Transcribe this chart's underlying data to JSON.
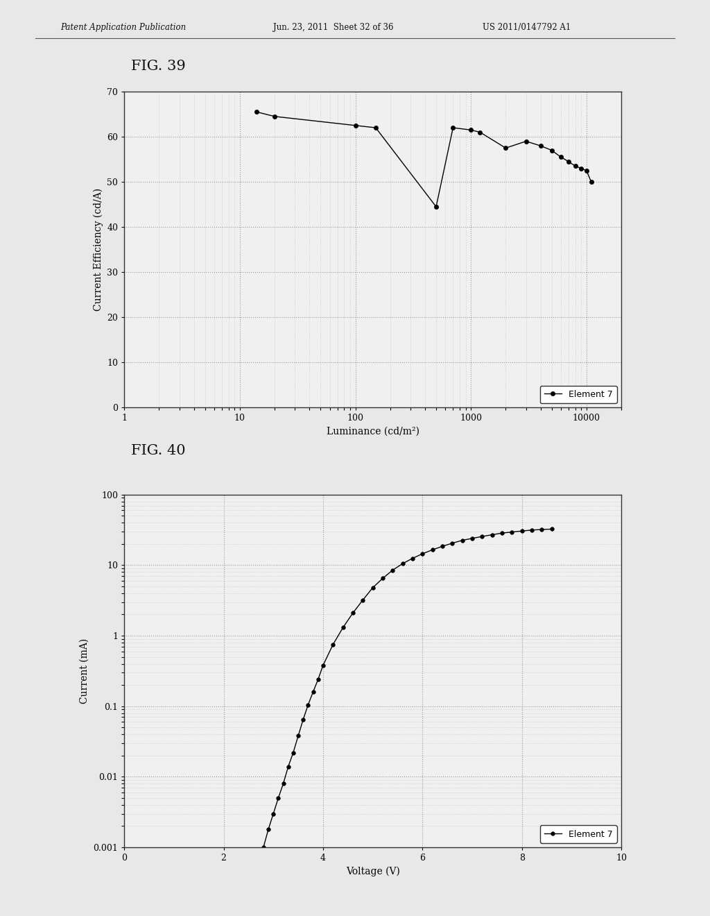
{
  "fig39_title": "FIG. 39",
  "fig40_title": "FIG. 40",
  "header_left": "Patent Application Publication",
  "header_mid": "Jun. 23, 2011  Sheet 32 of 36",
  "header_right": "US 2011/0147792 A1",
  "fig39": {
    "x": [
      14,
      20,
      100,
      150,
      500,
      700,
      1000,
      1200,
      2000,
      3000,
      4000,
      5000,
      6000,
      7000,
      8000,
      9000,
      10000,
      11000
    ],
    "y": [
      65.5,
      64.5,
      62.5,
      62.0,
      44.5,
      62.0,
      61.5,
      61.0,
      57.5,
      59.0,
      58.0,
      57.0,
      55.5,
      54.5,
      53.5,
      53.0,
      52.5,
      50.0
    ],
    "xlabel": "Luminance (cd/m²)",
    "ylabel": "Current Efficiency (cd/A)",
    "ylim": [
      0,
      70
    ],
    "yticks": [
      0,
      10,
      20,
      30,
      40,
      50,
      60,
      70
    ],
    "xticks": [
      1,
      10,
      100,
      1000,
      10000
    ],
    "xticklabels": [
      "1",
      "10",
      "100",
      "1000",
      "10000"
    ],
    "legend": "Element 7"
  },
  "fig40": {
    "x": [
      2.8,
      2.9,
      3.0,
      3.1,
      3.2,
      3.3,
      3.4,
      3.5,
      3.6,
      3.7,
      3.8,
      3.9,
      4.0,
      4.2,
      4.4,
      4.6,
      4.8,
      5.0,
      5.2,
      5.4,
      5.6,
      5.8,
      6.0,
      6.2,
      6.4,
      6.6,
      6.8,
      7.0,
      7.2,
      7.4,
      7.6,
      7.8,
      8.0,
      8.2,
      8.4,
      8.6
    ],
    "y": [
      0.001,
      0.0018,
      0.003,
      0.005,
      0.008,
      0.014,
      0.022,
      0.038,
      0.065,
      0.105,
      0.16,
      0.24,
      0.38,
      0.75,
      1.3,
      2.1,
      3.2,
      4.8,
      6.5,
      8.5,
      10.5,
      12.5,
      14.5,
      16.5,
      18.5,
      20.5,
      22.5,
      24.0,
      25.5,
      27.0,
      28.5,
      29.5,
      30.5,
      31.5,
      32.0,
      32.5
    ],
    "xlabel": "Voltage (V)",
    "ylabel": "Current (mA)",
    "xlim": [
      0,
      10
    ],
    "ylim": [
      0.001,
      100
    ],
    "xticks": [
      0,
      2,
      4,
      6,
      8,
      10
    ],
    "yticks": [
      0.001,
      0.01,
      0.1,
      1,
      10,
      100
    ],
    "yticklabels": [
      "0.001",
      "0.01",
      "0.1",
      "1",
      "10",
      "100"
    ],
    "legend": "Element 7"
  },
  "bg_color": "#e8e8e8",
  "plot_bg_color": "#f0f0f0",
  "line_color": "#000000",
  "marker_color": "#000000",
  "grid_color": "#999999",
  "header_font_size": 8.5,
  "axis_label_fontsize": 10,
  "tick_fontsize": 9,
  "legend_fontsize": 9,
  "fig_label_fontsize": 15
}
